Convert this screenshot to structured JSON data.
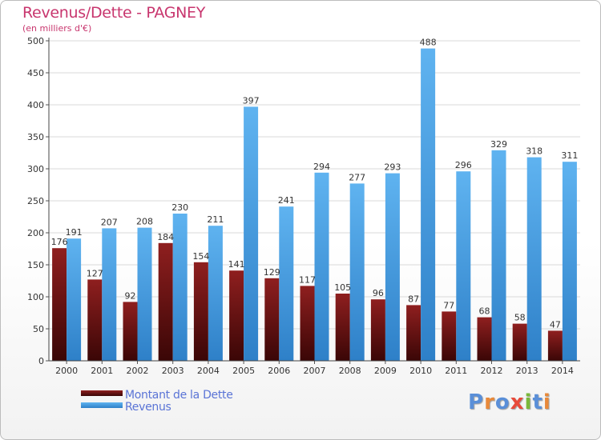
{
  "chart_data": {
    "type": "bar",
    "title": "Revenus/Dette - PAGNEY",
    "subtitle": "(en milliers d'€)",
    "xlabel": "",
    "ylabel": "",
    "ylim": [
      0,
      500
    ],
    "yticks": [
      0,
      50,
      100,
      150,
      200,
      250,
      300,
      350,
      400,
      450,
      500
    ],
    "grid": true,
    "legend_position": "bottom-left",
    "categories": [
      "2000",
      "2001",
      "2002",
      "2003",
      "2004",
      "2005",
      "2006",
      "2007",
      "2008",
      "2009",
      "2010",
      "2011",
      "2012",
      "2013",
      "2014"
    ],
    "series": [
      {
        "name": "Montant de la Dette",
        "color": "#7a1414",
        "values": [
          176,
          127,
          92,
          184,
          154,
          141,
          129,
          117,
          105,
          96,
          87,
          77,
          68,
          58,
          47
        ]
      },
      {
        "name": "Revenus",
        "color": "#4aa3e8",
        "values": [
          191,
          207,
          208,
          230,
          211,
          397,
          241,
          294,
          277,
          293,
          488,
          296,
          329,
          318,
          311
        ]
      }
    ]
  },
  "logo": {
    "text": "Proxiti",
    "colors": [
      "#5a8fd8",
      "#e8893a",
      "#5a8fd8",
      "#e84a3a",
      "#7ab83a",
      "#5a8fd8",
      "#e8893a"
    ]
  }
}
